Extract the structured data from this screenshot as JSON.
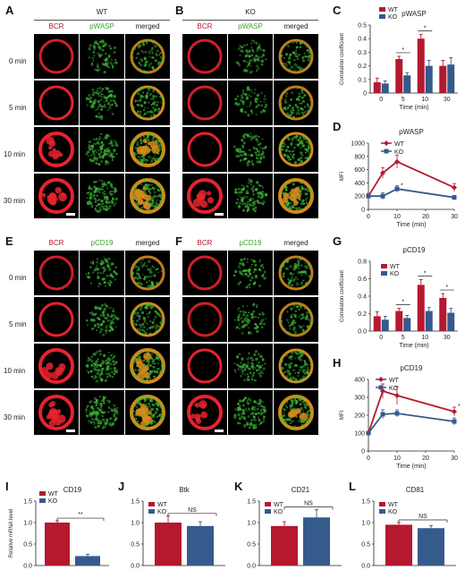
{
  "panel_letters": {
    "A": "A",
    "B": "B",
    "C": "C",
    "D": "D",
    "E": "E",
    "F": "F",
    "G": "G",
    "H": "H",
    "I": "I",
    "J": "J",
    "K": "K",
    "L": "L"
  },
  "groups": {
    "wt": "WT",
    "ko": "KO"
  },
  "columns": {
    "bcr": "BCR",
    "pwasp": "pWASP",
    "pcd19": "pCD19",
    "merged": "merged"
  },
  "times": [
    "0 min",
    "5 min",
    "10 min",
    "30 min"
  ],
  "colors": {
    "wt": "#b5182f",
    "ko": "#355a8c",
    "bcr": "#e8222e",
    "green": "#3fc23a",
    "merged": "#d48a1c"
  },
  "chart_data": [
    {
      "id": "C",
      "type": "bar",
      "title": "pWASP",
      "categories": [
        "0",
        "5",
        "10",
        "30"
      ],
      "xlabel": "Time (min)",
      "ylabel": "Correlation coefficient",
      "ylim": [
        0,
        0.5
      ],
      "yticks": [
        "0",
        "0.1",
        "0.2",
        "0.3",
        "0.4",
        "0.5"
      ],
      "series": [
        {
          "name": "WT",
          "values": [
            0.08,
            0.25,
            0.4,
            0.2
          ],
          "errors": [
            0.03,
            0.02,
            0.03,
            0.04
          ]
        },
        {
          "name": "KO",
          "values": [
            0.07,
            0.13,
            0.2,
            0.21
          ],
          "errors": [
            0.02,
            0.02,
            0.04,
            0.05
          ]
        }
      ],
      "annotations": [
        "*",
        "*"
      ]
    },
    {
      "id": "D",
      "type": "line",
      "title": "pWASP",
      "x": [
        0,
        5,
        10,
        30
      ],
      "xticks": [
        "0",
        "10",
        "20",
        "30"
      ],
      "xlabel": "Time (min)",
      "ylabel": "MFI",
      "ylim": [
        0,
        1000
      ],
      "yticks": [
        "0",
        "200",
        "400",
        "600",
        "800",
        "1000"
      ],
      "series": [
        {
          "name": "WT",
          "values": [
            200,
            550,
            720,
            330
          ],
          "errors": [
            40,
            80,
            100,
            60
          ]
        },
        {
          "name": "KO",
          "values": [
            200,
            200,
            310,
            180
          ],
          "errors": [
            40,
            50,
            50,
            30
          ]
        }
      ],
      "annotations": [
        "*"
      ]
    },
    {
      "id": "G",
      "type": "bar",
      "title": "pCD19",
      "categories": [
        "0",
        "5",
        "10",
        "30"
      ],
      "xlabel": "Time (min)",
      "ylabel": "Correlation coefficient",
      "ylim": [
        0,
        0.8
      ],
      "yticks": [
        "0.0",
        "0.2",
        "0.4",
        "0.6",
        "0.8"
      ],
      "series": [
        {
          "name": "WT",
          "values": [
            0.17,
            0.23,
            0.53,
            0.38
          ],
          "errors": [
            0.05,
            0.03,
            0.06,
            0.05
          ]
        },
        {
          "name": "KO",
          "values": [
            0.13,
            0.15,
            0.23,
            0.21
          ],
          "errors": [
            0.04,
            0.03,
            0.04,
            0.05
          ]
        }
      ],
      "annotations": [
        "*",
        "*",
        "*"
      ]
    },
    {
      "id": "H",
      "type": "line",
      "title": "pCD19",
      "x": [
        0,
        5,
        10,
        30
      ],
      "xticks": [
        "0",
        "10",
        "20",
        "30"
      ],
      "xlabel": "Time (min)",
      "ylabel": "MFI",
      "ylim": [
        0,
        400
      ],
      "yticks": [
        "0",
        "100",
        "200",
        "300",
        "400"
      ],
      "series": [
        {
          "name": "WT",
          "values": [
            100,
            335,
            310,
            220
          ],
          "errors": [
            10,
            40,
            50,
            25
          ]
        },
        {
          "name": "KO",
          "values": [
            100,
            205,
            210,
            165
          ],
          "errors": [
            10,
            25,
            20,
            20
          ]
        }
      ],
      "annotations": [
        "*"
      ]
    },
    {
      "id": "I",
      "type": "bar",
      "title": "CD19",
      "categories": [
        ""
      ],
      "xlabel": "",
      "ylabel": "Relative mRNA level",
      "ylim": [
        0,
        1.5
      ],
      "yticks": [
        "0.0",
        "0.5",
        "1.0",
        "1.5"
      ],
      "series": [
        {
          "name": "WT",
          "values": [
            1.0
          ],
          "errors": [
            0.04
          ]
        },
        {
          "name": "KO",
          "values": [
            0.22
          ],
          "errors": [
            0.04
          ]
        }
      ],
      "sig": "**"
    },
    {
      "id": "J",
      "type": "bar",
      "title": "Btk",
      "categories": [
        ""
      ],
      "xlabel": "",
      "ylabel": "",
      "ylim": [
        0,
        1.5
      ],
      "yticks": [
        "0.0",
        "0.5",
        "1.0",
        "1.5"
      ],
      "series": [
        {
          "name": "WT",
          "values": [
            1.0
          ],
          "errors": [
            0.15
          ]
        },
        {
          "name": "KO",
          "values": [
            0.92
          ],
          "errors": [
            0.1
          ]
        }
      ],
      "sig": "NS"
    },
    {
      "id": "K",
      "type": "bar",
      "title": "CD21",
      "categories": [
        ""
      ],
      "xlabel": "",
      "ylabel": "",
      "ylim": [
        0,
        1.5
      ],
      "yticks": [
        "0.0",
        "0.5",
        "1.0",
        "1.5"
      ],
      "series": [
        {
          "name": "WT",
          "values": [
            0.92
          ],
          "errors": [
            0.1
          ]
        },
        {
          "name": "KO",
          "values": [
            1.12
          ],
          "errors": [
            0.18
          ]
        }
      ],
      "sig": "NS"
    },
    {
      "id": "L",
      "type": "bar",
      "title": "CD81",
      "categories": [
        ""
      ],
      "xlabel": "",
      "ylabel": "",
      "ylim": [
        0,
        1.5
      ],
      "yticks": [
        "0.0",
        "0.5",
        "1.0",
        "1.5"
      ],
      "series": [
        {
          "name": "WT",
          "values": [
            0.95
          ],
          "errors": [
            0.05
          ]
        },
        {
          "name": "KO",
          "values": [
            0.87
          ],
          "errors": [
            0.06
          ]
        }
      ],
      "sig": "NS"
    }
  ]
}
